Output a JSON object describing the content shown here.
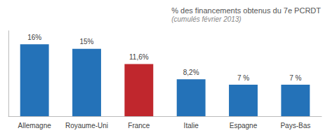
{
  "chart_data": {
    "type": "bar",
    "title": "% des financements obtenus du 7e PCRDT",
    "subtitle": "(cumulés février 2013)",
    "categories": [
      "Allemagne",
      "Royaume-Uni",
      "France",
      "Italie",
      "Espagne",
      "Pays-Bas"
    ],
    "values": [
      16,
      15,
      11.6,
      8.2,
      7,
      7
    ],
    "value_labels": [
      "16%",
      "15%",
      "11,6%",
      "8,2%",
      "7 %",
      "7 %"
    ],
    "colors": [
      "#2472B8",
      "#2472B8",
      "#C0272D",
      "#2472B8",
      "#2472B8",
      "#2472B8"
    ],
    "data_labels": true,
    "ylim": [
      0,
      19
    ],
    "tick_labels": "x",
    "grid": false
  }
}
